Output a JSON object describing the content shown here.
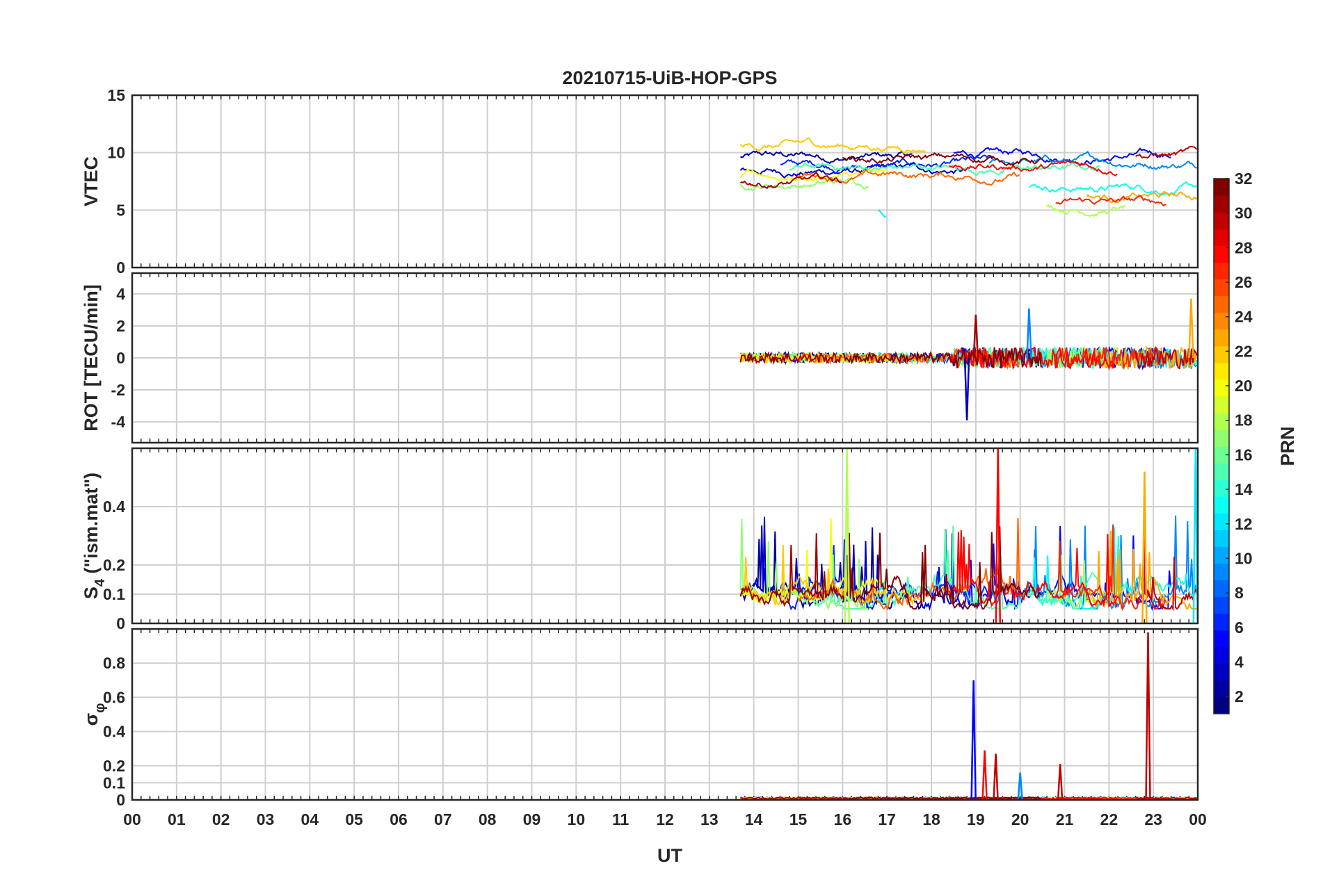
{
  "title": "20210715-UiB-HOP-GPS",
  "colors": {
    "grid": "#cfcfcf",
    "axis": "#262626",
    "background": "#ffffff"
  },
  "chart_data": {
    "type": "line",
    "xlabel": "UT",
    "x_range_hours": [
      0,
      24
    ],
    "x_tick_labels": [
      "00",
      "01",
      "02",
      "03",
      "04",
      "05",
      "06",
      "07",
      "08",
      "09",
      "10",
      "11",
      "12",
      "13",
      "14",
      "15",
      "16",
      "17",
      "18",
      "19",
      "20",
      "21",
      "22",
      "23",
      "00"
    ],
    "data_start_hour": 13.65,
    "colorbar": {
      "label": "PRN",
      "range": [
        1,
        32
      ],
      "ticks": [
        2,
        4,
        6,
        8,
        10,
        12,
        14,
        16,
        18,
        20,
        22,
        24,
        26,
        28,
        30,
        32
      ],
      "tick_labels": [
        "2",
        "4",
        "6",
        "8",
        "10",
        "12",
        "14",
        "16",
        "18",
        "20",
        "22",
        "24",
        "26",
        "28",
        "30",
        "32"
      ],
      "colormap": "jet"
    },
    "panels": [
      {
        "id": "vtec",
        "ylabel": "VTEC",
        "ylim": [
          0,
          15
        ],
        "yticks": [
          0,
          5,
          10,
          15
        ],
        "ytick_labels": [
          "0",
          "5",
          "10",
          "15"
        ],
        "baseline": 8.2,
        "spread": 1.4
      },
      {
        "id": "rot",
        "ylabel": "ROT [TECU/min]",
        "ylim": [
          -5.3,
          5.3
        ],
        "yticks": [
          -4,
          -2,
          0,
          2,
          4
        ],
        "ytick_labels": [
          "-4",
          "-2",
          "0",
          "2",
          "4"
        ],
        "baseline": 0,
        "spread": 0.3
      },
      {
        "id": "s4",
        "ylabel": "S4 (\"ism.mat\")",
        "ylabel_main": "S",
        "ylabel_sub": "4",
        "ylabel_rest": " (\"ism.mat\")",
        "ylim": [
          0,
          0.6
        ],
        "yticks": [
          0,
          0.1,
          0.2,
          0.4
        ],
        "ytick_labels": [
          "0",
          "0.1",
          "0.2",
          "0.4"
        ],
        "baseline": 0.1,
        "spread": 0.08
      },
      {
        "id": "sigma_phi",
        "ylabel": "σφ",
        "ylabel_main": "σ",
        "ylabel_sub": "φ",
        "ylim": [
          0,
          1
        ],
        "yticks": [
          0,
          0.1,
          0.2,
          0.4,
          0.6,
          0.8
        ],
        "ytick_labels": [
          "0",
          "0.1",
          "0.2",
          "0.4",
          "0.6",
          "0.8"
        ],
        "baseline": 0.02,
        "spread": 0.01
      }
    ],
    "series": [
      {
        "prn": 2,
        "start": 13.7,
        "end": 17.6,
        "vtec": 9.6
      },
      {
        "prn": 3,
        "start": 13.7,
        "end": 18.8,
        "vtec": 8.4
      },
      {
        "prn": 5,
        "start": 18.5,
        "end": 23.4,
        "vtec": 9.8
      },
      {
        "prn": 6,
        "start": 14.6,
        "end": 19.4,
        "vtec": 8.9
      },
      {
        "prn": 9,
        "start": 19.3,
        "end": 24.0,
        "vtec": 9.2
      },
      {
        "prn": 12,
        "start": 16.8,
        "end": 17.0,
        "vtec": 5.0
      },
      {
        "prn": 13,
        "start": 20.2,
        "end": 24.0,
        "vtec": 7.0
      },
      {
        "prn": 15,
        "start": 14.8,
        "end": 21.8,
        "vtec": 8.6
      },
      {
        "prn": 17,
        "start": 13.7,
        "end": 16.6,
        "vtec": 7.4
      },
      {
        "prn": 18,
        "start": 20.6,
        "end": 22.4,
        "vtec": 5.2
      },
      {
        "prn": 20,
        "start": 13.7,
        "end": 17.0,
        "vtec": 7.9
      },
      {
        "prn": 22,
        "start": 13.7,
        "end": 17.9,
        "vtec": 10.6
      },
      {
        "prn": 23,
        "start": 21.5,
        "end": 24.0,
        "vtec": 6.1
      },
      {
        "prn": 25,
        "start": 15.0,
        "end": 20.0,
        "vtec": 8.0
      },
      {
        "prn": 27,
        "start": 20.8,
        "end": 23.3,
        "vtec": 5.6
      },
      {
        "prn": 28,
        "start": 18.4,
        "end": 22.2,
        "vtec": 8.8
      },
      {
        "prn": 30,
        "start": 22.6,
        "end": 24.0,
        "vtec": 9.8
      },
      {
        "prn": 31,
        "start": 13.7,
        "end": 16.0,
        "vtec": 7.5
      },
      {
        "prn": 32,
        "start": 16.0,
        "end": 20.5,
        "vtec": 9.4
      }
    ],
    "spikes": [
      {
        "panel": "sigma_phi",
        "prn": 5,
        "hour": 18.95,
        "value": 0.7
      },
      {
        "panel": "sigma_phi",
        "prn": 28,
        "hour": 19.2,
        "value": 0.29
      },
      {
        "panel": "sigma_phi",
        "prn": 30,
        "hour": 19.45,
        "value": 0.27
      },
      {
        "panel": "sigma_phi",
        "prn": 30,
        "hour": 22.88,
        "value": 0.98
      },
      {
        "panel": "sigma_phi",
        "prn": 9,
        "hour": 20.0,
        "value": 0.16
      },
      {
        "panel": "sigma_phi",
        "prn": 30,
        "hour": 20.9,
        "value": 0.21
      },
      {
        "panel": "rot",
        "prn": 3,
        "hour": 18.8,
        "value": -3.9
      },
      {
        "panel": "rot",
        "prn": 9,
        "hour": 20.2,
        "value": 3.1
      },
      {
        "panel": "rot",
        "prn": 23,
        "hour": 23.85,
        "value": 3.7
      },
      {
        "panel": "rot",
        "prn": 31,
        "hour": 19.0,
        "value": 2.7
      },
      {
        "panel": "s4",
        "prn": 28,
        "hour": 19.5,
        "value": 0.6
      },
      {
        "panel": "s4",
        "prn": 18,
        "hour": 16.1,
        "value": 0.6
      },
      {
        "panel": "s4",
        "prn": 23,
        "hour": 22.8,
        "value": 0.52
      },
      {
        "panel": "s4",
        "prn": 12,
        "hour": 23.95,
        "value": 0.6
      }
    ]
  }
}
